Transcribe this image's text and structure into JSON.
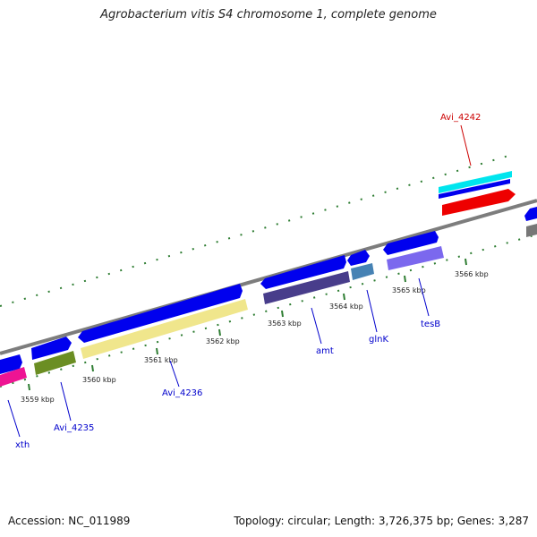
{
  "title": "Agrobacterium vitis S4 chromosome 1, complete genome",
  "footer": {
    "accession": "Accession: NC_011989",
    "topology": "Topology: circular; Length: 3,726,375 bp; Genes: 3,287"
  },
  "ticks": [
    "3559 kbp",
    "3560 kbp",
    "3561 kbp",
    "3562 kbp",
    "3563 kbp",
    "3564 kbp",
    "3565 kbp",
    "3566 kbp"
  ],
  "genes": [
    {
      "label": "xth",
      "color": "#0000cc"
    },
    {
      "label": "Avi_4235",
      "color": "#0000cc"
    },
    {
      "label": "Avi_4236",
      "color": "#0000cc"
    },
    {
      "label": "amt",
      "color": "#0000cc"
    },
    {
      "label": "glnK",
      "color": "#0000cc"
    },
    {
      "label": "tesB",
      "color": "#0000cc"
    },
    {
      "label": "Avi_4242",
      "color": "#cc0000"
    }
  ],
  "colors": {
    "backbone": "#888888",
    "cds_forward": "#0000ee",
    "dots": "#2e7d32",
    "avi4242_top": "#00e5ee",
    "avi4242_mid": "#0000ee",
    "avi4242_red": "#ee0000"
  }
}
